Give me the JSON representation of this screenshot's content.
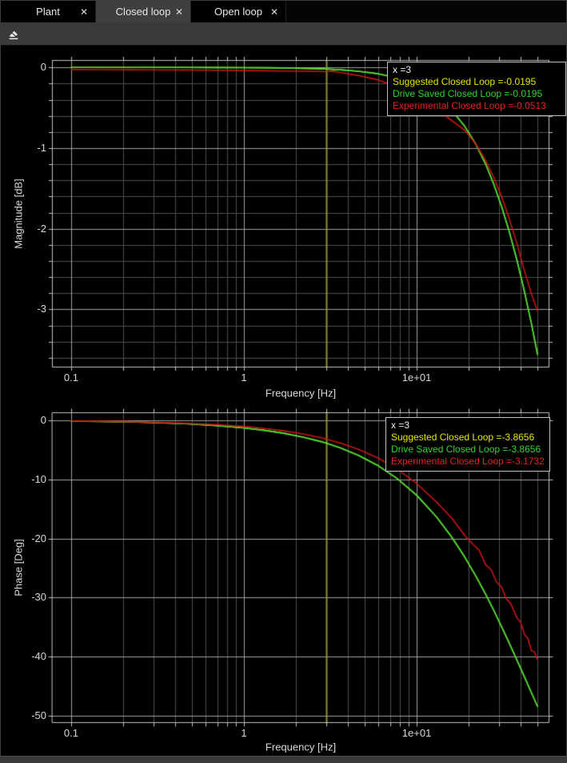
{
  "tabs": [
    {
      "label": "Plant",
      "active": false
    },
    {
      "label": "Closed loop",
      "active": true
    },
    {
      "label": "Open loop",
      "active": false
    }
  ],
  "icons": {
    "close": "✕",
    "eraser": "eraser-icon"
  },
  "colors": {
    "plot_background": "#000000",
    "grid_major": "#a2a2a2",
    "grid_minor": "#4f4f4f",
    "axis_border": "#c4c4c4",
    "tick_text": "#d6d6d6",
    "cursor_line": "#8f8f3c",
    "suggested": "#e6e600",
    "drive_saved": "#3cd63c",
    "experimental": "#cc1414"
  },
  "chart_data": [
    {
      "type": "line",
      "xlabel": "Frequency [Hz]",
      "ylabel": "Magnitude [dB]",
      "xscale": "log",
      "xlim": [
        0.0775,
        58.6
      ],
      "ylim": [
        -3.72,
        0.092
      ],
      "x_ticks": [
        {
          "value": 0.1,
          "label": "0.1"
        },
        {
          "value": 1,
          "label": "1"
        },
        {
          "value": 10,
          "label": "1e+01"
        }
      ],
      "x_minor": [
        0.2,
        0.3,
        0.4,
        0.5,
        0.6,
        0.7,
        0.8,
        0.9,
        2,
        3,
        4,
        5,
        6,
        7,
        8,
        9,
        20,
        30,
        40,
        50
      ],
      "y_ticks": [
        {
          "value": 0,
          "label": "0"
        },
        {
          "value": -1,
          "label": "-1"
        },
        {
          "value": -2,
          "label": "-2"
        },
        {
          "value": -3,
          "label": "-3"
        }
      ],
      "y_minor_step": 0.2,
      "cursor_x": 3,
      "series": [
        {
          "name": "Suggested Closed Loop",
          "color": "#e6e600",
          "points": [
            [
              0.1,
              0
            ],
            [
              0.15,
              -0.0001
            ],
            [
              0.22,
              -0.0001
            ],
            [
              0.32,
              -0.0002
            ],
            [
              0.46,
              -0.0005
            ],
            [
              0.68,
              -0.001
            ],
            [
              1,
              -0.0022
            ],
            [
              1.3,
              -0.0037
            ],
            [
              1.7,
              -0.0064
            ],
            [
              2.2,
              -0.0106
            ],
            [
              2.8,
              -0.0172
            ],
            [
              3,
              -0.0195
            ],
            [
              3.6,
              -0.0284
            ],
            [
              4.6,
              -0.0463
            ],
            [
              6,
              -0.0784
            ],
            [
              7.7,
              -0.1283
            ],
            [
              10,
              -0.215
            ],
            [
              13,
              -0.357
            ],
            [
              16,
              -0.533
            ],
            [
              19,
              -0.733
            ],
            [
              22,
              -0.953
            ],
            [
              25,
              -1.194
            ],
            [
              28,
              -1.454
            ],
            [
              31,
              -1.725
            ],
            [
              34,
              -2.004
            ],
            [
              38,
              -2.387
            ],
            [
              42,
              -2.776
            ],
            [
              46,
              -3.166
            ],
            [
              50,
              -3.557
            ]
          ]
        },
        {
          "name": "Drive Saved Closed Loop",
          "color": "#3cd63c",
          "points": [
            [
              0.1,
              0
            ],
            [
              0.15,
              -0.0001
            ],
            [
              0.22,
              -0.0001
            ],
            [
              0.32,
              -0.0002
            ],
            [
              0.46,
              -0.0005
            ],
            [
              0.68,
              -0.001
            ],
            [
              1,
              -0.0022
            ],
            [
              1.3,
              -0.0037
            ],
            [
              1.7,
              -0.0064
            ],
            [
              2.2,
              -0.0106
            ],
            [
              2.8,
              -0.0172
            ],
            [
              3,
              -0.0195
            ],
            [
              3.6,
              -0.0284
            ],
            [
              4.6,
              -0.0463
            ],
            [
              6,
              -0.0784
            ],
            [
              7.7,
              -0.1283
            ],
            [
              10,
              -0.215
            ],
            [
              13,
              -0.357
            ],
            [
              16,
              -0.533
            ],
            [
              19,
              -0.733
            ],
            [
              22,
              -0.953
            ],
            [
              25,
              -1.194
            ],
            [
              28,
              -1.454
            ],
            [
              31,
              -1.725
            ],
            [
              34,
              -2.004
            ],
            [
              38,
              -2.387
            ],
            [
              42,
              -2.776
            ],
            [
              46,
              -3.166
            ],
            [
              50,
              -3.557
            ]
          ]
        },
        {
          "name": "Experimental Closed Loop",
          "color": "#cc1414",
          "points": [
            [
              0.1,
              -0.026
            ],
            [
              0.15,
              -0.027
            ],
            [
              0.22,
              -0.028
            ],
            [
              0.32,
              -0.03
            ],
            [
              0.46,
              -0.031
            ],
            [
              0.68,
              -0.034
            ],
            [
              1,
              -0.038
            ],
            [
              1.3,
              -0.041
            ],
            [
              1.7,
              -0.044
            ],
            [
              2.2,
              -0.047
            ],
            [
              2.8,
              -0.05
            ],
            [
              3,
              -0.0513
            ],
            [
              3.3,
              -0.046
            ],
            [
              3.6,
              -0.062
            ],
            [
              4.6,
              -0.1
            ],
            [
              6,
              -0.155
            ],
            [
              7.7,
              -0.24
            ],
            [
              10,
              -0.36
            ],
            [
              13,
              -0.52
            ],
            [
              16,
              -0.66
            ],
            [
              19,
              -0.78
            ],
            [
              22,
              -0.95
            ],
            [
              25,
              -1.15
            ],
            [
              28,
              -1.37
            ],
            [
              31,
              -1.6
            ],
            [
              34,
              -1.85
            ],
            [
              38,
              -2.18
            ],
            [
              42,
              -2.52
            ],
            [
              46,
              -2.8
            ],
            [
              50,
              -3.02
            ]
          ]
        }
      ],
      "tooltip": {
        "x_label": "x =3",
        "lines": [
          {
            "text": "Suggested Closed Loop =-0.0195",
            "color": "#e6e600"
          },
          {
            "text": "Drive Saved Closed Loop =-0.0195",
            "color": "#2fd62f"
          },
          {
            "text": "Experimental Closed Loop =-0.0513",
            "color": "#e62222"
          }
        ]
      }
    },
    {
      "type": "line",
      "xlabel": "Frequency [Hz]",
      "ylabel": "Phase [Deg]",
      "xscale": "log",
      "xlim": [
        0.0775,
        58.6
      ],
      "ylim": [
        -51.2,
        1.35
      ],
      "x_ticks": [
        {
          "value": 0.1,
          "label": "0.1"
        },
        {
          "value": 1,
          "label": "1"
        },
        {
          "value": 10,
          "label": "1e+01"
        }
      ],
      "x_minor": [
        0.2,
        0.3,
        0.4,
        0.5,
        0.6,
        0.7,
        0.8,
        0.9,
        2,
        3,
        4,
        5,
        6,
        7,
        8,
        9,
        20,
        30,
        40,
        50
      ],
      "y_ticks": [
        {
          "value": 0,
          "label": "0"
        },
        {
          "value": -10,
          "label": "-10"
        },
        {
          "value": -20,
          "label": "-20"
        },
        {
          "value": -30,
          "label": "-30"
        },
        {
          "value": -40,
          "label": "-40"
        },
        {
          "value": -50,
          "label": "-50"
        }
      ],
      "y_minor_step": null,
      "cursor_x": 3,
      "series": [
        {
          "name": "Suggested Closed Loop",
          "color": "#e6e600",
          "points": [
            [
              0.1,
              -0.13
            ],
            [
              0.15,
              -0.19
            ],
            [
              0.22,
              -0.28
            ],
            [
              0.32,
              -0.41
            ],
            [
              0.46,
              -0.59
            ],
            [
              0.68,
              -0.88
            ],
            [
              1,
              -1.29
            ],
            [
              1.3,
              -1.68
            ],
            [
              1.7,
              -2.19
            ],
            [
              2.2,
              -2.84
            ],
            [
              2.8,
              -3.61
            ],
            [
              3,
              -3.8656
            ],
            [
              3.6,
              -4.64
            ],
            [
              4.6,
              -5.92
            ],
            [
              6,
              -7.7
            ],
            [
              7.7,
              -9.84
            ],
            [
              10,
              -12.69
            ],
            [
              13,
              -16.32
            ],
            [
              16,
              -19.81
            ],
            [
              19,
              -23.17
            ],
            [
              22,
              -26.36
            ],
            [
              25,
              -29.37
            ],
            [
              28,
              -32.24
            ],
            [
              31,
              -34.92
            ],
            [
              34,
              -37.44
            ],
            [
              38,
              -40.55
            ],
            [
              42,
              -43.4
            ],
            [
              46,
              -46.02
            ],
            [
              50,
              -48.39
            ]
          ]
        },
        {
          "name": "Drive Saved Closed Loop",
          "color": "#3cd63c",
          "points": [
            [
              0.1,
              -0.13
            ],
            [
              0.15,
              -0.19
            ],
            [
              0.22,
              -0.28
            ],
            [
              0.32,
              -0.41
            ],
            [
              0.46,
              -0.59
            ],
            [
              0.68,
              -0.88
            ],
            [
              1,
              -1.29
            ],
            [
              1.3,
              -1.68
            ],
            [
              1.7,
              -2.19
            ],
            [
              2.2,
              -2.84
            ],
            [
              2.8,
              -3.61
            ],
            [
              3,
              -3.8656
            ],
            [
              3.6,
              -4.64
            ],
            [
              4.6,
              -5.92
            ],
            [
              6,
              -7.7
            ],
            [
              7.7,
              -9.84
            ],
            [
              10,
              -12.69
            ],
            [
              13,
              -16.32
            ],
            [
              16,
              -19.81
            ],
            [
              19,
              -23.17
            ],
            [
              22,
              -26.36
            ],
            [
              25,
              -29.37
            ],
            [
              28,
              -32.24
            ],
            [
              31,
              -34.92
            ],
            [
              34,
              -37.44
            ],
            [
              38,
              -40.55
            ],
            [
              42,
              -43.4
            ],
            [
              46,
              -46.02
            ],
            [
              50,
              -48.39
            ]
          ]
        },
        {
          "name": "Experimental Closed Loop",
          "color": "#cc1414",
          "points": [
            [
              0.1,
              -0.1
            ],
            [
              0.15,
              -0.16
            ],
            [
              0.22,
              -0.23
            ],
            [
              0.32,
              -0.34
            ],
            [
              0.46,
              -0.49
            ],
            [
              0.68,
              -0.72
            ],
            [
              1,
              -1.04
            ],
            [
              1.3,
              -1.36
            ],
            [
              1.7,
              -1.78
            ],
            [
              2.2,
              -2.31
            ],
            [
              2.8,
              -2.95
            ],
            [
              3,
              -3.1732
            ],
            [
              3.6,
              -3.82
            ],
            [
              4.6,
              -4.9
            ],
            [
              6,
              -6.4
            ],
            [
              7.7,
              -8.25
            ],
            [
              10,
              -10.7
            ],
            [
              13,
              -13.8
            ],
            [
              16,
              -16.6
            ],
            [
              19,
              -19.5
            ],
            [
              21,
              -20.9
            ],
            [
              23,
              -22
            ],
            [
              25,
              -24.4
            ],
            [
              27,
              -25.3
            ],
            [
              29,
              -27.4
            ],
            [
              31,
              -28.2
            ],
            [
              33,
              -30.2
            ],
            [
              35,
              -31
            ],
            [
              38,
              -33.4
            ],
            [
              40,
              -34.2
            ],
            [
              42,
              -36.2
            ],
            [
              44,
              -36.9
            ],
            [
              46,
              -38.9
            ],
            [
              48,
              -39.2
            ],
            [
              50,
              -40.5
            ]
          ]
        }
      ],
      "tooltip": {
        "x_label": "x =3",
        "lines": [
          {
            "text": "Suggested Closed Loop =-3.8656",
            "color": "#e6e600"
          },
          {
            "text": "Drive Saved Closed Loop =-3.8656",
            "color": "#2fd62f"
          },
          {
            "text": "Experimental Closed Loop =-3.1732",
            "color": "#e62222"
          }
        ]
      }
    }
  ]
}
